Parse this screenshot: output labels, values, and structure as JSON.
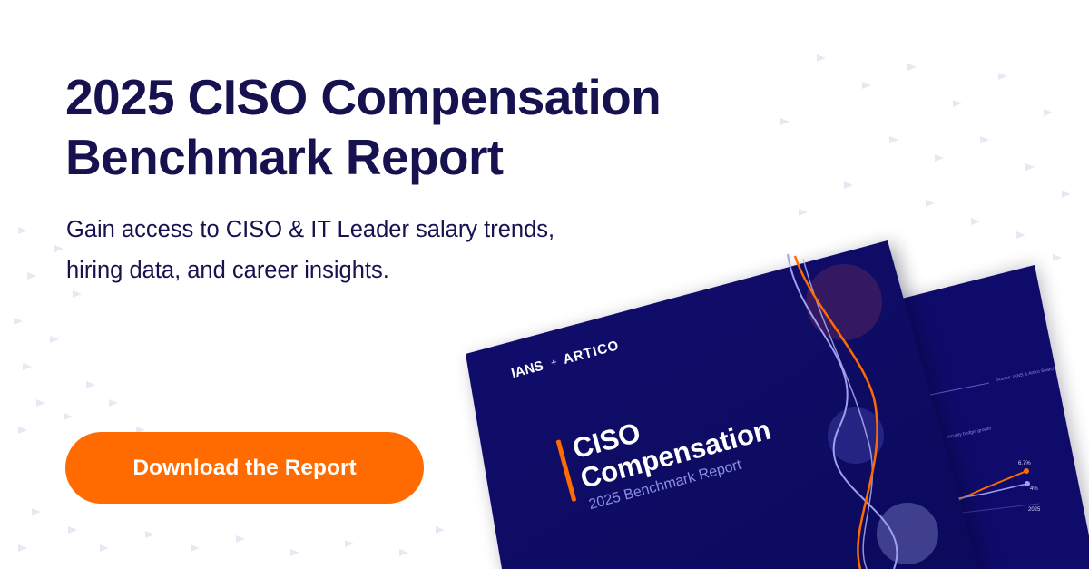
{
  "headline": {
    "line1": "2025 CISO Compensation",
    "line2": "Benchmark Report"
  },
  "subheadline": {
    "line1": "Gain access to CISO & IT Leader salary trends,",
    "line2": "hiring data, and career insights."
  },
  "cta": {
    "label": "Download the Report"
  },
  "report_cover": {
    "brand_left": "IANS",
    "brand_separator": "+",
    "brand_right": "ARTICO",
    "title_line1": "CISO",
    "title_line2": "Compensation",
    "subtitle": "2025 Benchmark Report"
  },
  "report_back_page": {
    "source_note": "Source: IANS & Artico Search",
    "chart_caption": "security budget growth",
    "value_high": "6.7%",
    "value_low": "4%",
    "year_label": "2025"
  },
  "colors": {
    "navy_text": "#16124f",
    "accent_orange": "#ff6b00",
    "cover_navy": "#1a1280",
    "cover_lavender": "#9fa0f0"
  }
}
